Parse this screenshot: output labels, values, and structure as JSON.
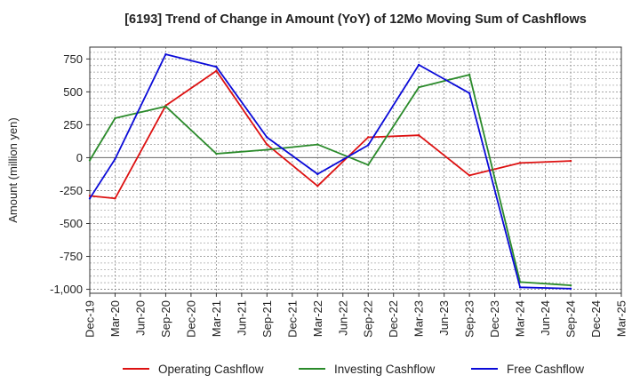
{
  "chart_data": {
    "type": "line",
    "title": "[6193]  Trend of Change in Amount (YoY) of 12Mo Moving Sum of Cashflows",
    "xlabel": "",
    "ylabel": "Amount (million yen)",
    "ylim": [
      -1030,
      840
    ],
    "yticks": [
      750,
      500,
      250,
      0,
      -250,
      -500,
      -750,
      -1000
    ],
    "ytick_labels": [
      "750",
      "500",
      "250",
      "0",
      "-250",
      "-500",
      "-750",
      "-1,000"
    ],
    "categories": [
      "Dec-19",
      "Mar-20",
      "Jun-20",
      "Sep-20",
      "Dec-20",
      "Mar-21",
      "Jun-21",
      "Sep-21",
      "Dec-21",
      "Mar-22",
      "Jun-22",
      "Sep-22",
      "Dec-22",
      "Mar-23",
      "Jun-23",
      "Sep-23",
      "Dec-23",
      "Mar-24",
      "Jun-24",
      "Sep-24",
      "Dec-24",
      "Mar-25"
    ],
    "grid": true,
    "legend_position": "bottom",
    "series": [
      {
        "name": "Operating Cashflow",
        "color": "#dd1111",
        "values": [
          -290,
          -310,
          null,
          395,
          null,
          660,
          null,
          100,
          null,
          -215,
          null,
          155,
          null,
          170,
          null,
          -135,
          null,
          -40,
          null,
          -25,
          null,
          null
        ]
      },
      {
        "name": "Investing Cashflow",
        "color": "#2a8a2a",
        "values": [
          -20,
          300,
          null,
          390,
          null,
          30,
          null,
          60,
          null,
          100,
          null,
          -55,
          null,
          535,
          null,
          630,
          null,
          -945,
          null,
          -970,
          null,
          null
        ]
      },
      {
        "name": "Free Cashflow",
        "color": "#0a0ad8",
        "values": [
          -310,
          -10,
          null,
          785,
          null,
          690,
          null,
          155,
          null,
          -125,
          null,
          95,
          null,
          705,
          null,
          490,
          null,
          -985,
          null,
          -995,
          null,
          null
        ]
      }
    ]
  }
}
